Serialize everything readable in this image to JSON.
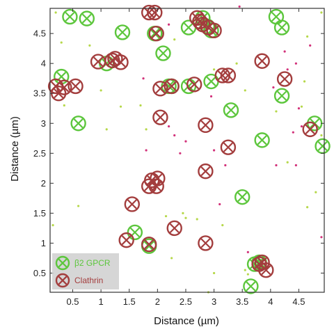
{
  "chart_data": {
    "type": "scatter",
    "xlabel": "Distance (µm)",
    "ylabel": "Distance (µm)",
    "xlim": [
      0.1,
      4.95
    ],
    "ylim": [
      0.18,
      4.92
    ],
    "xticks": [
      0.5,
      1,
      1.5,
      2,
      2.5,
      3,
      3.5,
      4,
      4.5
    ],
    "yticks": [
      0.5,
      1,
      1.5,
      2,
      2.5,
      3,
      3.5,
      4,
      4.5
    ],
    "xtick_labels": [
      "0.5",
      "1",
      "1.5",
      "2",
      "2.5",
      "3",
      "3.5",
      "4",
      "4.5"
    ],
    "ytick_labels": [
      "0.5",
      "1",
      "1.5",
      "2",
      "2.5",
      "3",
      "3.5",
      "4",
      "4.5"
    ],
    "grid": false,
    "legend_position": "bottom-left",
    "series": [
      {
        "name": "β2 GPCR",
        "marker": "circled-x",
        "color": "#5cc63c",
        "points": [
          [
            0.45,
            4.78
          ],
          [
            0.75,
            4.75
          ],
          [
            1.38,
            4.52
          ],
          [
            0.3,
            3.78
          ],
          [
            0.6,
            3.0
          ],
          [
            1.1,
            4.0
          ],
          [
            2.1,
            4.17
          ],
          [
            2.55,
            4.6
          ],
          [
            2.8,
            4.76
          ],
          [
            2.88,
            4.62
          ],
          [
            2.95,
            4.55
          ],
          [
            4.1,
            4.78
          ],
          [
            4.2,
            4.6
          ],
          [
            2.2,
            3.62
          ],
          [
            2.25,
            3.62
          ],
          [
            2.55,
            3.62
          ],
          [
            2.95,
            3.7
          ],
          [
            3.3,
            3.22
          ],
          [
            4.2,
            3.46
          ],
          [
            3.85,
            2.72
          ],
          [
            4.78,
            3.0
          ],
          [
            4.92,
            2.62
          ],
          [
            3.5,
            1.77
          ],
          [
            1.6,
            1.18
          ],
          [
            1.85,
            0.95
          ],
          [
            3.65,
            0.28
          ],
          [
            3.72,
            0.65
          ],
          [
            3.8,
            0.68
          ],
          [
            1.95,
            4.5
          ]
        ]
      },
      {
        "name": "Clathrin",
        "marker": "circled-x",
        "color": "#a33d3d",
        "points": [
          [
            1.85,
            4.85
          ],
          [
            1.95,
            4.85
          ],
          [
            1.98,
            4.5
          ],
          [
            2.7,
            4.76
          ],
          [
            2.75,
            4.7
          ],
          [
            2.8,
            4.65
          ],
          [
            2.9,
            4.6
          ],
          [
            3.0,
            4.55
          ],
          [
            0.95,
            4.03
          ],
          [
            1.2,
            4.05
          ],
          [
            1.25,
            4.08
          ],
          [
            1.35,
            4.02
          ],
          [
            0.2,
            3.62
          ],
          [
            0.25,
            3.5
          ],
          [
            0.35,
            3.6
          ],
          [
            0.55,
            3.62
          ],
          [
            2.05,
            3.58
          ],
          [
            2.25,
            3.62
          ],
          [
            2.65,
            3.65
          ],
          [
            3.15,
            3.8
          ],
          [
            3.25,
            3.8
          ],
          [
            3.85,
            4.04
          ],
          [
            4.25,
            3.74
          ],
          [
            2.05,
            3.1
          ],
          [
            2.85,
            2.97
          ],
          [
            3.25,
            2.6
          ],
          [
            4.7,
            2.9
          ],
          [
            2.85,
            2.2
          ],
          [
            1.85,
            1.95
          ],
          [
            1.9,
            2.05
          ],
          [
            2.0,
            2.08
          ],
          [
            1.98,
            1.95
          ],
          [
            1.55,
            1.65
          ],
          [
            2.3,
            1.25
          ],
          [
            2.85,
            1.0
          ],
          [
            1.45,
            1.05
          ],
          [
            1.85,
            0.98
          ],
          [
            3.8,
            0.65
          ],
          [
            3.85,
            0.68
          ],
          [
            3.92,
            0.55
          ]
        ]
      }
    ],
    "background_dots": {
      "green": [
        [
          0.2,
          4.85
        ],
        [
          0.3,
          4.35
        ],
        [
          0.35,
          3.3
        ],
        [
          0.15,
          1.3
        ],
        [
          0.6,
          1.62
        ],
        [
          1.0,
          3.55
        ],
        [
          1.7,
          3.3
        ],
        [
          2.3,
          4.4
        ],
        [
          3.55,
          3.55
        ],
        [
          4.6,
          3.7
        ],
        [
          4.8,
          1.85
        ],
        [
          4.65,
          1.6
        ],
        [
          2.25,
          0.75
        ],
        [
          2.5,
          1.42
        ],
        [
          2.7,
          1.4
        ],
        [
          2.45,
          1.5
        ],
        [
          3.15,
          1.3
        ],
        [
          1.35,
          3.28
        ],
        [
          1.1,
          2.9
        ],
        [
          4.3,
          2.35
        ],
        [
          4.65,
          4.45
        ],
        [
          4.9,
          4.85
        ],
        [
          3.55,
          0.55
        ],
        [
          3.6,
          0.48
        ],
        [
          3.0,
          0.5
        ],
        [
          3.4,
          4.0
        ],
        [
          1.8,
          2.9
        ],
        [
          2.9,
          0.18
        ],
        [
          4.55,
          3.28
        ],
        [
          4.9,
          2.8
        ],
        [
          2.15,
          1.45
        ],
        [
          3.0,
          3.9
        ],
        [
          4.1,
          3.2
        ],
        [
          0.8,
          4.3
        ]
      ],
      "magenta": [
        [
          2.2,
          2.95
        ],
        [
          2.3,
          2.8
        ],
        [
          2.5,
          2.7
        ],
        [
          3.0,
          2.55
        ],
        [
          3.2,
          2.3
        ],
        [
          4.05,
          3.6
        ],
        [
          4.3,
          3.9
        ],
        [
          4.45,
          4.0
        ],
        [
          4.5,
          3.25
        ],
        [
          4.4,
          2.85
        ],
        [
          4.55,
          2.95
        ],
        [
          4.1,
          2.3
        ],
        [
          4.45,
          2.3
        ],
        [
          1.75,
          3.75
        ],
        [
          2.4,
          2.5
        ],
        [
          3.45,
          4.95
        ],
        [
          2.2,
          4.65
        ],
        [
          3.1,
          1.65
        ],
        [
          4.9,
          1.1
        ],
        [
          3.6,
          0.85
        ],
        [
          4.25,
          4.2
        ],
        [
          4.7,
          4.3
        ],
        [
          2.95,
          3.45
        ],
        [
          1.8,
          2.55
        ]
      ]
    }
  }
}
